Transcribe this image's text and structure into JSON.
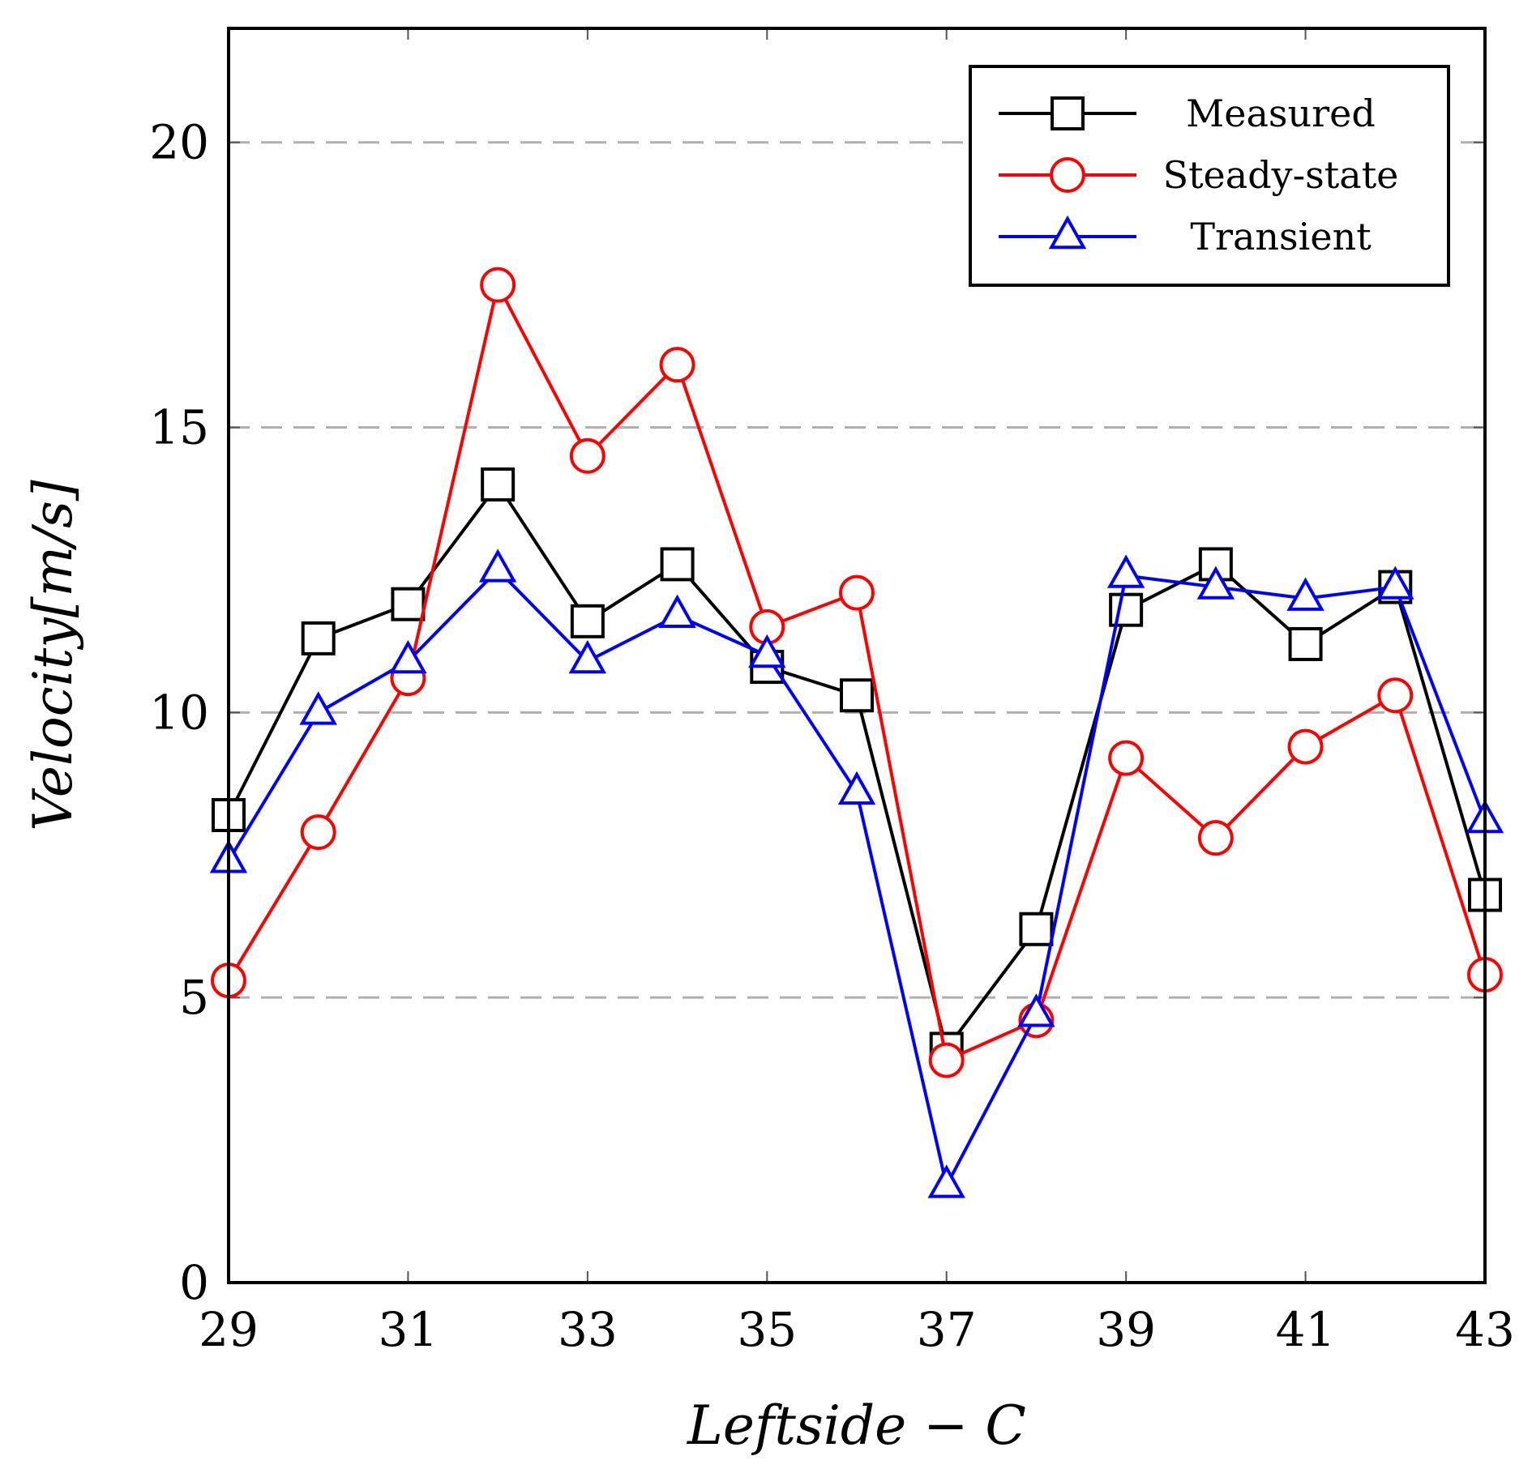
{
  "chart_data": {
    "type": "line",
    "title": "",
    "xlabel": "Leftside − C",
    "ylabel": "Velocity[m/s]",
    "xlim": [
      29,
      43
    ],
    "ylim": [
      0,
      22
    ],
    "xticks": [
      29,
      31,
      33,
      35,
      37,
      39,
      41,
      43
    ],
    "yticks": [
      0,
      5,
      10,
      15,
      20
    ],
    "grid": "horizontal dashed",
    "legend_position": "top-right",
    "x": [
      29,
      30,
      31,
      32,
      33,
      34,
      35,
      36,
      37,
      38,
      39,
      40,
      41,
      42,
      43
    ],
    "series": [
      {
        "name": "Measured",
        "color": "#000000",
        "marker": "square",
        "values": [
          8.2,
          11.3,
          11.9,
          14.0,
          11.6,
          12.6,
          10.8,
          10.3,
          4.1,
          6.2,
          11.8,
          12.6,
          11.2,
          12.2,
          6.8
        ]
      },
      {
        "name": "Steady-state",
        "color": "#ff0000",
        "marker": "circle",
        "values": [
          5.3,
          7.9,
          10.6,
          17.5,
          14.5,
          16.1,
          11.5,
          12.1,
          3.9,
          4.6,
          9.2,
          7.8,
          9.4,
          10.3,
          5.4
        ]
      },
      {
        "name": "Transient",
        "color": "#0000ff",
        "marker": "triangle",
        "values": [
          7.4,
          10.0,
          10.9,
          12.5,
          10.9,
          11.7,
          11.0,
          8.6,
          1.7,
          4.7,
          12.4,
          12.2,
          12.0,
          12.2,
          8.1
        ]
      }
    ]
  }
}
